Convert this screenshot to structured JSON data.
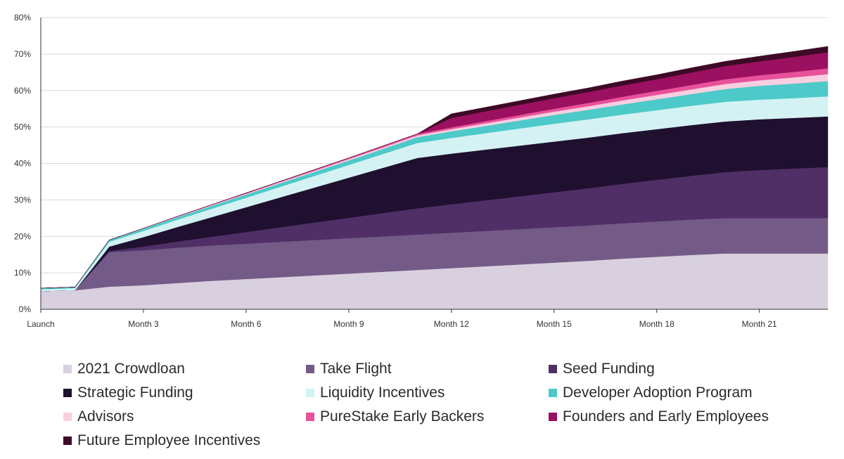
{
  "chart_data": {
    "type": "area",
    "stacked": true,
    "title": "",
    "xlabel": "",
    "ylabel": "",
    "ylim": [
      0,
      80
    ],
    "y_ticks": [
      "0%",
      "10%",
      "20%",
      "30%",
      "40%",
      "50%",
      "60%",
      "70%",
      "80%"
    ],
    "y_tick_values": [
      0,
      10,
      20,
      30,
      40,
      50,
      60,
      70,
      80
    ],
    "x_tick_labels": [
      "Launch",
      "Month 3",
      "Month 6",
      "Month 9",
      "Month 12",
      "Month 15",
      "Month 18",
      "Month 21"
    ],
    "x_tick_values": [
      0,
      3,
      6,
      9,
      12,
      15,
      18,
      21
    ],
    "x_range": [
      0,
      23
    ],
    "grid": true,
    "legend_position": "bottom",
    "x": [
      0,
      1,
      2,
      3,
      4,
      5,
      6,
      7,
      8,
      9,
      10,
      11,
      12,
      13,
      14,
      15,
      16,
      17,
      18,
      19,
      20,
      21,
      22,
      23
    ],
    "series": [
      {
        "name": "2021 Crowdloan",
        "color": "#d8d0de",
        "values": [
          5.0,
          5.2,
          6.2,
          6.6,
          7.2,
          7.8,
          8.3,
          8.8,
          9.3,
          9.8,
          10.3,
          10.8,
          11.3,
          11.8,
          12.3,
          12.8,
          13.3,
          13.9,
          14.4,
          14.9,
          15.3,
          15.3,
          15.3,
          15.3
        ]
      },
      {
        "name": "Take Flight",
        "color": "#745b87",
        "values": [
          0,
          0,
          9.5,
          9.6,
          9.7,
          9.7,
          9.7,
          9.7,
          9.7,
          9.7,
          9.7,
          9.7,
          9.7,
          9.7,
          9.7,
          9.7,
          9.7,
          9.7,
          9.7,
          9.7,
          9.7,
          9.7,
          9.7,
          9.7
        ]
      },
      {
        "name": "Seed Funding",
        "color": "#4f2f66",
        "values": [
          0,
          0,
          0.3,
          1.0,
          1.7,
          2.4,
          3.2,
          4.0,
          4.8,
          5.6,
          6.4,
          7.2,
          7.8,
          8.4,
          9.0,
          9.6,
          10.2,
          10.8,
          11.4,
          12.0,
          12.6,
          13.2,
          13.6,
          14.0
        ]
      },
      {
        "name": "Strategic Funding",
        "color": "#1f1030",
        "values": [
          0,
          0,
          1.2,
          2.6,
          4.0,
          5.4,
          6.8,
          8.2,
          9.6,
          11.0,
          12.4,
          13.8,
          13.9,
          13.9,
          13.9,
          13.9,
          13.9,
          13.9,
          13.9,
          13.9,
          13.9,
          13.9,
          13.9,
          13.9
        ]
      },
      {
        "name": "Liquidity Incentives",
        "color": "#d4f2f3",
        "values": [
          0.5,
          0.6,
          1.3,
          1.7,
          2.0,
          2.3,
          2.6,
          2.9,
          3.2,
          3.5,
          3.8,
          4.1,
          4.3,
          4.5,
          4.7,
          4.9,
          5.0,
          5.1,
          5.2,
          5.3,
          5.4,
          5.4,
          5.4,
          5.5
        ]
      },
      {
        "name": "Developer Adoption Program",
        "color": "#4cc9c8",
        "values": [
          0.3,
          0.3,
          0.5,
          0.6,
          0.7,
          0.8,
          0.9,
          1.0,
          1.1,
          1.2,
          1.4,
          1.6,
          1.8,
          2.0,
          2.2,
          2.4,
          2.6,
          2.8,
          3.0,
          3.2,
          3.5,
          3.8,
          4.0,
          4.2
        ]
      },
      {
        "name": "Advisors",
        "color": "#f7cfe0",
        "values": [
          0,
          0,
          0,
          0.1,
          0.1,
          0.2,
          0.2,
          0.3,
          0.3,
          0.4,
          0.4,
          0.5,
          0.6,
          0.7,
          0.8,
          0.9,
          1.0,
          1.1,
          1.2,
          1.3,
          1.4,
          1.5,
          1.7,
          1.9
        ]
      },
      {
        "name": "PureStake Early Backers",
        "color": "#e8529a",
        "values": [
          0,
          0,
          0,
          0,
          0.1,
          0.1,
          0.2,
          0.2,
          0.3,
          0.3,
          0.4,
          0.4,
          0.5,
          0.6,
          0.7,
          0.8,
          0.9,
          1.0,
          1.1,
          1.2,
          1.3,
          1.4,
          1.5,
          1.6
        ]
      },
      {
        "name": "Founders and Early Employees",
        "color": "#9b1060",
        "values": [
          0,
          0,
          0,
          0,
          0,
          0,
          0,
          0,
          0,
          0,
          0,
          0,
          2.6,
          2.7,
          2.8,
          2.9,
          3.0,
          3.1,
          3.2,
          3.4,
          3.6,
          3.8,
          4.1,
          4.4
        ]
      },
      {
        "name": "Future Employee Incentives",
        "color": "#3d0a26",
        "values": [
          0,
          0,
          0,
          0,
          0,
          0,
          0,
          0,
          0,
          0,
          0,
          0,
          1.1,
          1.1,
          1.1,
          1.1,
          1.1,
          1.2,
          1.2,
          1.3,
          1.3,
          1.4,
          1.5,
          1.6
        ]
      }
    ]
  }
}
